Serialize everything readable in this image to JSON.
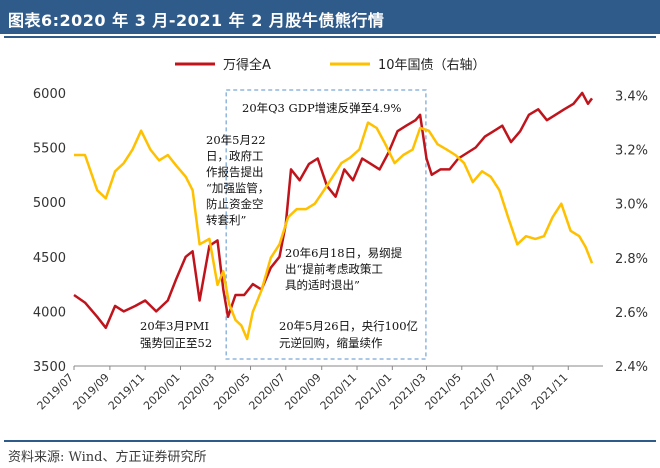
{
  "title": "图表6:2020 年 3 月-2021 年 2 月股牛债熊行情",
  "source": "资料来源: Wind、方正证券研究所",
  "colors": {
    "title_bg": "#2f5b8a",
    "series_a": "#c0141c",
    "series_b": "#ffc000",
    "box": "#8fb6dd"
  },
  "chart_data": {
    "type": "line",
    "legend_position": "top",
    "grid": false,
    "x_ticks": [
      "2019/07",
      "2019/09",
      "2019/11",
      "2020/01",
      "2020/03",
      "2020/05",
      "2020/07",
      "2020/09",
      "2020/11",
      "2021/01",
      "2021/03",
      "2021/05",
      "2021/07",
      "2021/09",
      "2021/11"
    ],
    "x_range": [
      "2019-07",
      "2021-12"
    ],
    "y_left": {
      "ticks": [
        3500,
        4000,
        4500,
        5000,
        5500,
        6000
      ],
      "range": [
        3500,
        6100
      ]
    },
    "y_right": {
      "ticks": [
        "2.4%",
        "2.6%",
        "2.8%",
        "3.0%",
        "3.2%",
        "3.4%"
      ],
      "range": [
        2.4,
        3.45
      ]
    },
    "series": [
      {
        "name": "万得全A",
        "axis": "left",
        "points": [
          [
            "2019-07-01",
            4150
          ],
          [
            "2019-07-20",
            4080
          ],
          [
            "2019-08-10",
            3950
          ],
          [
            "2019-08-25",
            3850
          ],
          [
            "2019-09-10",
            4050
          ],
          [
            "2019-09-25",
            4000
          ],
          [
            "2019-10-15",
            4050
          ],
          [
            "2019-11-01",
            4100
          ],
          [
            "2019-11-20",
            4000
          ],
          [
            "2019-12-10",
            4100
          ],
          [
            "2019-12-25",
            4300
          ],
          [
            "2020-01-10",
            4500
          ],
          [
            "2020-01-22",
            4550
          ],
          [
            "2020-02-03",
            4100
          ],
          [
            "2020-02-20",
            4600
          ],
          [
            "2020-03-05",
            4650
          ],
          [
            "2020-03-15",
            4200
          ],
          [
            "2020-03-23",
            3950
          ],
          [
            "2020-04-05",
            4150
          ],
          [
            "2020-04-20",
            4150
          ],
          [
            "2020-05-05",
            4250
          ],
          [
            "2020-05-20",
            4200
          ],
          [
            "2020-06-05",
            4400
          ],
          [
            "2020-06-20",
            4500
          ],
          [
            "2020-07-01",
            4800
          ],
          [
            "2020-07-10",
            5300
          ],
          [
            "2020-07-25",
            5200
          ],
          [
            "2020-08-10",
            5350
          ],
          [
            "2020-08-25",
            5400
          ],
          [
            "2020-09-10",
            5150
          ],
          [
            "2020-09-25",
            5050
          ],
          [
            "2020-10-10",
            5300
          ],
          [
            "2020-10-25",
            5200
          ],
          [
            "2020-11-10",
            5400
          ],
          [
            "2020-11-25",
            5350
          ],
          [
            "2020-12-10",
            5300
          ],
          [
            "2020-12-25",
            5450
          ],
          [
            "2021-01-10",
            5650
          ],
          [
            "2021-01-25",
            5700
          ],
          [
            "2021-02-10",
            5750
          ],
          [
            "2021-02-18",
            5800
          ],
          [
            "2021-03-01",
            5400
          ],
          [
            "2021-03-10",
            5250
          ],
          [
            "2021-03-25",
            5300
          ],
          [
            "2021-04-10",
            5300
          ],
          [
            "2021-04-25",
            5400
          ],
          [
            "2021-05-10",
            5450
          ],
          [
            "2021-05-25",
            5500
          ],
          [
            "2021-06-10",
            5600
          ],
          [
            "2021-06-25",
            5650
          ],
          [
            "2021-07-10",
            5700
          ],
          [
            "2021-07-25",
            5550
          ],
          [
            "2021-08-10",
            5650
          ],
          [
            "2021-08-25",
            5800
          ],
          [
            "2021-09-10",
            5850
          ],
          [
            "2021-09-25",
            5750
          ],
          [
            "2021-10-10",
            5800
          ],
          [
            "2021-10-25",
            5850
          ],
          [
            "2021-11-10",
            5900
          ],
          [
            "2021-11-25",
            6000
          ],
          [
            "2021-12-05",
            5900
          ],
          [
            "2021-12-12",
            5950
          ]
        ]
      },
      {
        "name": "10年国债（右轴）",
        "axis": "right",
        "points": [
          [
            "2019-07-01",
            3.18
          ],
          [
            "2019-07-20",
            3.18
          ],
          [
            "2019-08-10",
            3.05
          ],
          [
            "2019-08-25",
            3.02
          ],
          [
            "2019-09-10",
            3.12
          ],
          [
            "2019-09-25",
            3.15
          ],
          [
            "2019-10-10",
            3.2
          ],
          [
            "2019-10-25",
            3.27
          ],
          [
            "2019-11-10",
            3.2
          ],
          [
            "2019-11-25",
            3.16
          ],
          [
            "2019-12-10",
            3.18
          ],
          [
            "2019-12-25",
            3.14
          ],
          [
            "2020-01-10",
            3.1
          ],
          [
            "2020-01-22",
            3.05
          ],
          [
            "2020-02-03",
            2.85
          ],
          [
            "2020-02-20",
            2.87
          ],
          [
            "2020-03-05",
            2.7
          ],
          [
            "2020-03-15",
            2.75
          ],
          [
            "2020-03-25",
            2.63
          ],
          [
            "2020-04-05",
            2.57
          ],
          [
            "2020-04-15",
            2.55
          ],
          [
            "2020-04-25",
            2.5
          ],
          [
            "2020-05-05",
            2.6
          ],
          [
            "2020-05-20",
            2.68
          ],
          [
            "2020-06-05",
            2.8
          ],
          [
            "2020-06-20",
            2.85
          ],
          [
            "2020-07-05",
            2.95
          ],
          [
            "2020-07-20",
            2.98
          ],
          [
            "2020-08-05",
            2.98
          ],
          [
            "2020-08-20",
            3.0
          ],
          [
            "2020-09-05",
            3.05
          ],
          [
            "2020-09-20",
            3.1
          ],
          [
            "2020-10-05",
            3.15
          ],
          [
            "2020-10-20",
            3.17
          ],
          [
            "2020-11-05",
            3.2
          ],
          [
            "2020-11-20",
            3.3
          ],
          [
            "2020-12-05",
            3.28
          ],
          [
            "2020-12-20",
            3.22
          ],
          [
            "2021-01-05",
            3.15
          ],
          [
            "2021-01-20",
            3.18
          ],
          [
            "2021-02-05",
            3.2
          ],
          [
            "2021-02-18",
            3.28
          ],
          [
            "2021-03-05",
            3.27
          ],
          [
            "2021-03-20",
            3.22
          ],
          [
            "2021-04-05",
            3.2
          ],
          [
            "2021-04-20",
            3.18
          ],
          [
            "2021-05-05",
            3.15
          ],
          [
            "2021-05-20",
            3.08
          ],
          [
            "2021-06-05",
            3.12
          ],
          [
            "2021-06-20",
            3.1
          ],
          [
            "2021-07-05",
            3.05
          ],
          [
            "2021-07-20",
            2.95
          ],
          [
            "2021-08-05",
            2.85
          ],
          [
            "2021-08-20",
            2.88
          ],
          [
            "2021-09-05",
            2.87
          ],
          [
            "2021-09-20",
            2.88
          ],
          [
            "2021-10-05",
            2.95
          ],
          [
            "2021-10-20",
            3.0
          ],
          [
            "2021-11-05",
            2.9
          ],
          [
            "2021-11-20",
            2.88
          ],
          [
            "2021-12-01",
            2.84
          ],
          [
            "2021-12-12",
            2.78
          ]
        ]
      }
    ],
    "annotations": [
      {
        "id": "gdp",
        "lines": [
          "20年Q3 GDP增速反弹至4.9%"
        ]
      },
      {
        "id": "may22",
        "lines": [
          "20年5月22",
          "日，政府工",
          "作报告提出",
          "“加强监管，",
          "防止资金空",
          "转套利”"
        ]
      },
      {
        "id": "jun18",
        "lines": [
          "20年6月18日，易纲提",
          "出“提前考虑政策工",
          "具的适时退出”"
        ]
      },
      {
        "id": "pmi",
        "lines": [
          "20年3月PMI",
          "强势回正至52"
        ]
      },
      {
        "id": "may26",
        "lines": [
          "20年5月26日，央行100亿",
          "元逆回购，缩量续作"
        ]
      }
    ]
  }
}
